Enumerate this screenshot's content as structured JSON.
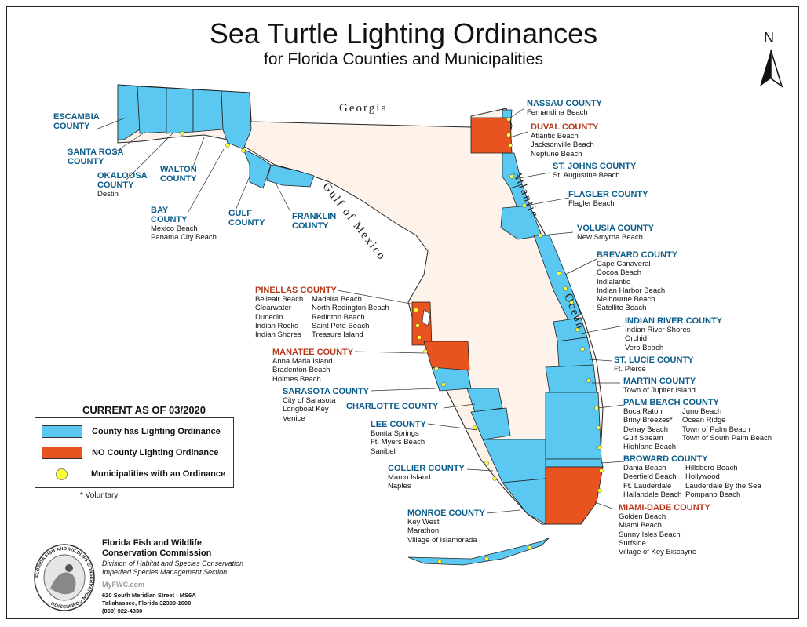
{
  "title": "Sea Turtle Lighting Ordinances",
  "subtitle": "for Florida Counties and Municipalities",
  "north_label": "N",
  "water_labels": {
    "georgia": "Georgia",
    "gulf": "Gulf of Mexico",
    "atlantic": "Atlantic",
    "ocean": "Ocean"
  },
  "colors": {
    "ordinance": "#5ac8f0",
    "no_ordinance": "#e8531f",
    "land": "#fdf3ea",
    "municipality_dot": "#ffff33",
    "county_text": "#0a5c8a",
    "no_county_text": "#b5391c"
  },
  "legend": {
    "title": "CURRENT AS OF 03/2020",
    "items": [
      {
        "label": "County has Lighting Ordinance"
      },
      {
        "label": "NO County Lighting Ordinance"
      },
      {
        "label": "Municipalities with an Ordinance"
      }
    ],
    "footnote": "* Voluntary"
  },
  "agency": {
    "name_line1": "Florida Fish and Wildlife",
    "name_line2": "Conservation Commission",
    "division_line1": "Division of Habitat and Species Conservation",
    "division_line2": "Imperiled Species Management Section",
    "url": "MyFWC.com",
    "address_line1": "620 South Meridian Street - MS6A",
    "address_line2": "Tallahassee, Florida 32399-1600",
    "phone": "(850) 922-4330",
    "seal_text": "FLORIDA FISH AND WILDLIFE CONSERVATION COMMISSION"
  },
  "counties": {
    "escambia": {
      "name_l1": "ESCAMBIA",
      "name_l2": "COUNTY",
      "municipalities": []
    },
    "santa_rosa": {
      "name_l1": "SANTA ROSA",
      "name_l2": "COUNTY",
      "municipalities": []
    },
    "okaloosa": {
      "name_l1": "OKALOOSA",
      "name_l2": "COUNTY",
      "municipalities": [
        "Destin"
      ]
    },
    "walton": {
      "name_l1": "WALTON",
      "name_l2": "COUNTY",
      "municipalities": []
    },
    "bay": {
      "name_l1": "BAY",
      "name_l2": "COUNTY",
      "municipalities": [
        "Mexico Beach",
        "Panama City Beach"
      ]
    },
    "gulf": {
      "name_l1": "GULF",
      "name_l2": "COUNTY",
      "municipalities": []
    },
    "franklin": {
      "name_l1": "FRANKLIN",
      "name_l2": "COUNTY",
      "municipalities": []
    },
    "nassau": {
      "name": "NASSAU COUNTY",
      "municipalities": [
        "Fernandina Beach"
      ]
    },
    "duval": {
      "name": "DUVAL COUNTY",
      "municipalities": [
        "Atlantic Beach",
        "Jacksonville Beach",
        "Neptune Beach"
      ]
    },
    "st_johns": {
      "name": "ST. JOHNS COUNTY",
      "municipalities": [
        "St. Augustine Beach"
      ]
    },
    "flagler": {
      "name": "FLAGLER COUNTY",
      "municipalities": [
        "Flagler Beach"
      ]
    },
    "volusia": {
      "name": "VOLUSIA COUNTY",
      "municipalities": [
        "New Smyrna Beach"
      ]
    },
    "brevard": {
      "name": "BREVARD COUNTY",
      "municipalities": [
        "Cape Canaveral",
        "Cocoa Beach",
        "Indialantic",
        "Indian Harbor Beach",
        "Melbourne Beach",
        "Satellite Beach"
      ]
    },
    "indian_river": {
      "name": "INDIAN RIVER COUNTY",
      "municipalities": [
        "Indian River Shores",
        "Orchid",
        "Vero Beach"
      ]
    },
    "st_lucie": {
      "name": "ST. LUCIE COUNTY",
      "municipalities": [
        "Ft. Pierce"
      ]
    },
    "martin": {
      "name": "MARTIN COUNTY",
      "municipalities": [
        "Town of Jupiter Island"
      ]
    },
    "palm_beach": {
      "name": "PALM BEACH COUNTY",
      "col1": [
        "Boca Raton",
        "Briny Breezes*",
        "Delray Beach",
        "Gulf Stream",
        "Highland Beach"
      ],
      "col2": [
        "Juno Beach",
        "Ocean Ridge",
        "Town of Palm Beach",
        "Town of South Palm Beach"
      ]
    },
    "broward": {
      "name": "BROWARD COUNTY",
      "col1": [
        "Dania Beach",
        "Deerfield Beach",
        "Ft. Lauderdale",
        "Hallandale Beach"
      ],
      "col2": [
        "Hillsboro Beach",
        "Hollywood",
        "Lauderdale By the Sea",
        "Pompano Beach"
      ]
    },
    "miami_dade": {
      "name": "MIAMI-DADE COUNTY",
      "municipalities": [
        "Golden Beach",
        "Miami Beach",
        "Sunny Isles Beach",
        "Surfside",
        "Village of Key Biscayne"
      ]
    },
    "pinellas": {
      "name": "PINELLAS COUNTY",
      "col1": [
        "Belleair Beach",
        "Clearwater",
        "Dunedin",
        "Indian Rocks",
        "Indian Shores"
      ],
      "col2": [
        "Madeira Beach",
        "North Redington Beach",
        "Redinton Beach",
        "Saint Pete Beach",
        "Treasure Island"
      ]
    },
    "manatee": {
      "name": "MANATEE COUNTY",
      "municipalities": [
        "Anna Maria Island",
        "Bradenton Beach",
        "Holmes Beach"
      ]
    },
    "sarasota": {
      "name": "SARASOTA COUNTY",
      "municipalities": [
        "City of Sarasota",
        "Longboat Key",
        "Venice"
      ]
    },
    "charlotte": {
      "name": "CHARLOTTE COUNTY",
      "municipalities": []
    },
    "lee": {
      "name": "LEE COUNTY",
      "municipalities": [
        "Bonita Springs",
        "Ft. Myers Beach",
        "Sanibel"
      ]
    },
    "collier": {
      "name": "COLLIER COUNTY",
      "municipalities": [
        "Marco Island",
        "Naples"
      ]
    },
    "monroe": {
      "name": "MONROE COUNTY",
      "municipalities": [
        "Key West",
        "Marathon",
        "Village of Islamorada"
      ]
    }
  }
}
